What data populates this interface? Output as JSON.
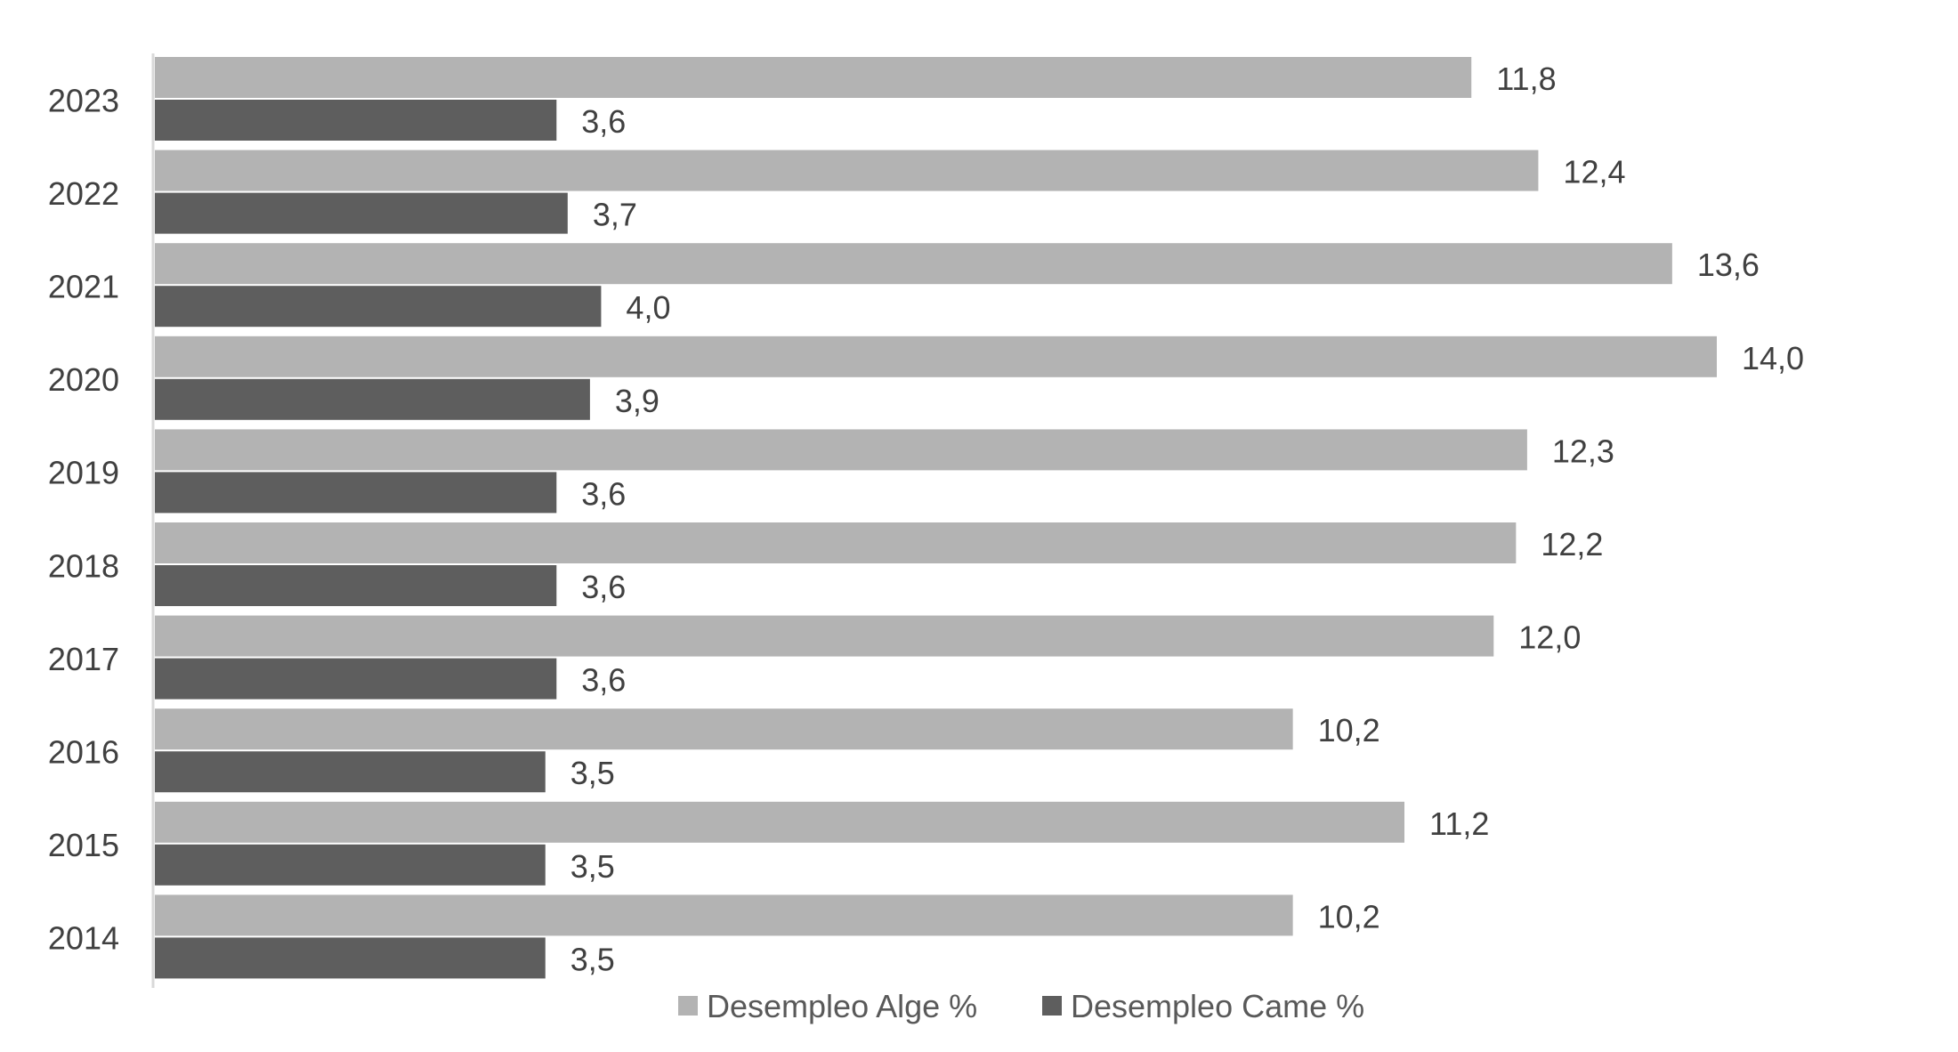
{
  "chart_data": {
    "type": "bar",
    "orientation": "horizontal",
    "categories": [
      "2023",
      "2022",
      "2021",
      "2020",
      "2019",
      "2018",
      "2017",
      "2016",
      "2015",
      "2014"
    ],
    "series": [
      {
        "name": "Desempleo Alge %",
        "color": "#b3b3b3",
        "values": [
          11.8,
          12.4,
          13.6,
          14.0,
          12.3,
          12.2,
          12.0,
          10.2,
          11.2,
          10.2
        ],
        "labels": [
          "11,8",
          "12,4",
          "13,6",
          "14,0",
          "12,3",
          "12,2",
          "12,0",
          "10,2",
          "11,2",
          "10,2"
        ]
      },
      {
        "name": "Desempleo Came %",
        "color": "#5e5e5e",
        "values": [
          3.6,
          3.7,
          4.0,
          3.9,
          3.6,
          3.6,
          3.6,
          3.5,
          3.5,
          3.5
        ],
        "labels": [
          "3,6",
          "3,7",
          "4,0",
          "3,9",
          "3,6",
          "3,6",
          "3,6",
          "3,5",
          "3,5",
          "3,5"
        ]
      }
    ],
    "title": "",
    "xlabel": "",
    "ylabel": "",
    "xlim": [
      0,
      14.0
    ],
    "grid": false,
    "legend_position": "bottom",
    "axis_color": "#d9d9d9"
  }
}
